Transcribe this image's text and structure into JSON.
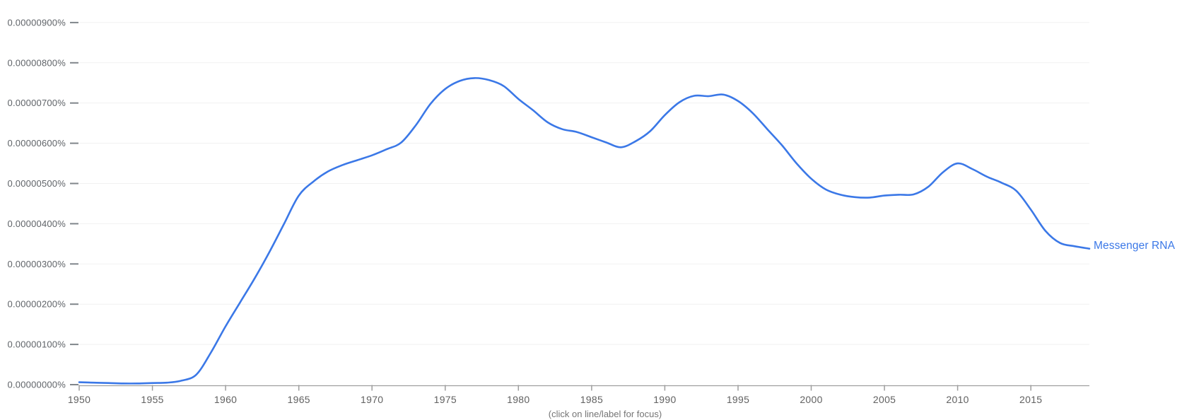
{
  "chart": {
    "series_label": "Messenger RNA",
    "footer_hint": "(click on line/label for focus)",
    "colors": {
      "line": "#3b78e7",
      "series_label": "#3b78e7",
      "grid": "#f1f1f1",
      "axis": "#9e9e9e",
      "y_tick": "#80868b",
      "y_tick_label": "#5f6368",
      "x_tick_label": "#616161",
      "hint_text": "#757575"
    }
  },
  "chart_data": {
    "type": "line",
    "title": "",
    "xlabel": "",
    "ylabel": "",
    "x_unit": "year",
    "y_unit": "percent x 1e-6",
    "xlim": [
      1950,
      2019
    ],
    "ylim": [
      0,
      9
    ],
    "grid": true,
    "legend": "inline end-of-line label",
    "x": [
      1950,
      1951,
      1952,
      1953,
      1954,
      1955,
      1956,
      1957,
      1958,
      1959,
      1960,
      1961,
      1962,
      1963,
      1964,
      1965,
      1966,
      1967,
      1968,
      1969,
      1970,
      1971,
      1972,
      1973,
      1974,
      1975,
      1976,
      1977,
      1978,
      1979,
      1980,
      1981,
      1982,
      1983,
      1984,
      1985,
      1986,
      1987,
      1988,
      1989,
      1990,
      1991,
      1992,
      1993,
      1994,
      1995,
      1996,
      1997,
      1998,
      1999,
      2000,
      2001,
      2002,
      2003,
      2004,
      2005,
      2006,
      2007,
      2008,
      2009,
      2010,
      2011,
      2012,
      2013,
      2014,
      2015,
      2016,
      2017,
      2018,
      2019
    ],
    "series": [
      {
        "name": "Messenger RNA",
        "values": [
          0.06,
          0.05,
          0.04,
          0.03,
          0.03,
          0.04,
          0.05,
          0.1,
          0.25,
          0.8,
          1.45,
          2.05,
          2.65,
          3.3,
          4.0,
          4.7,
          5.05,
          5.3,
          5.46,
          5.58,
          5.7,
          5.85,
          6.02,
          6.45,
          6.98,
          7.35,
          7.55,
          7.62,
          7.57,
          7.42,
          7.1,
          6.82,
          6.52,
          6.35,
          6.28,
          6.15,
          6.02,
          5.9,
          6.05,
          6.3,
          6.7,
          7.02,
          7.18,
          7.17,
          7.21,
          7.05,
          6.75,
          6.35,
          5.95,
          5.5,
          5.12,
          4.85,
          4.72,
          4.66,
          4.65,
          4.7,
          4.72,
          4.73,
          4.92,
          5.28,
          5.5,
          5.36,
          5.17,
          5.02,
          4.82,
          4.35,
          3.82,
          3.52,
          3.44,
          3.38
        ]
      }
    ],
    "x_ticks": [
      1950,
      1955,
      1960,
      1965,
      1970,
      1975,
      1980,
      1985,
      1990,
      1995,
      2000,
      2005,
      2010,
      2015
    ],
    "y_tick_labels": [
      "0.00000000%",
      "0.00000100%",
      "0.00000200%",
      "0.00000300%",
      "0.00000400%",
      "0.00000500%",
      "0.00000600%",
      "0.00000700%",
      "0.00000800%",
      "0.00000900%"
    ]
  }
}
